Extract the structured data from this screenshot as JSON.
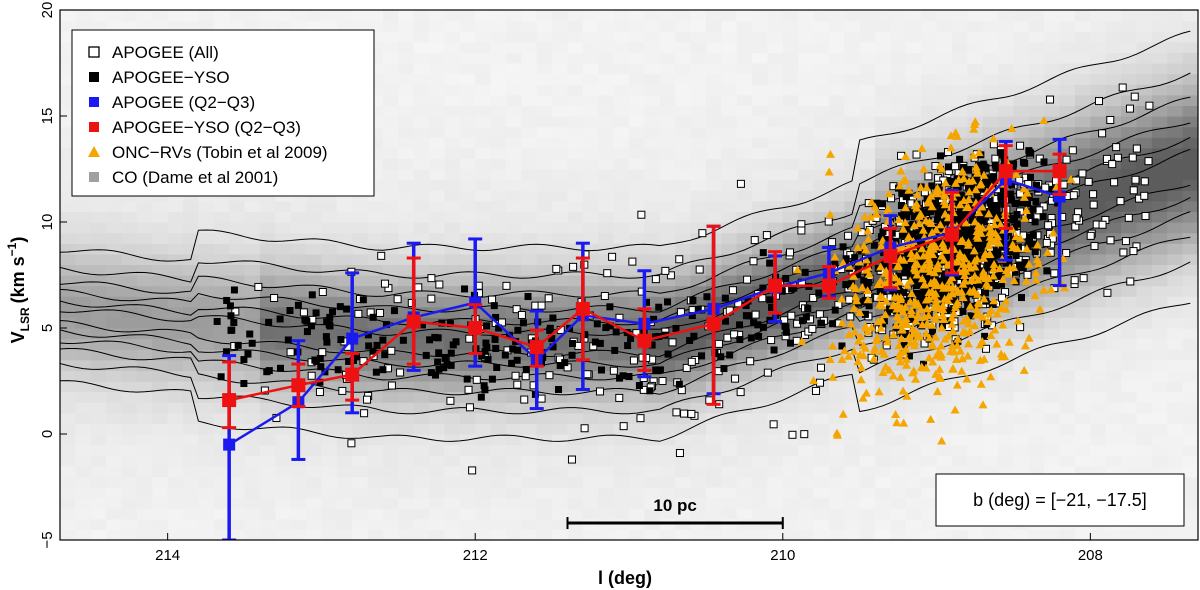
{
  "chart_data": {
    "type": "scatter",
    "xlabel": "l (deg)",
    "ylabel": "V",
    "ylabel_sub": "LSR",
    "ylabel_units": "(km s",
    "ylabel_exp": "−1",
    "ylabel_close": ")",
    "xlim": [
      214.7,
      207.3
    ],
    "ylim": [
      -5,
      20
    ],
    "x_ticks": [
      214,
      212,
      210,
      208
    ],
    "y_ticks": [
      -5,
      0,
      5,
      10,
      15,
      20
    ],
    "x_tick_labels": [
      "214",
      "212",
      "210",
      "208"
    ],
    "y_tick_labels": [
      "−5",
      "0",
      "5",
      "10",
      "15",
      "20"
    ],
    "legend_position": "top-left",
    "legend": [
      {
        "label": "APOGEE (All)",
        "marker": "open-square",
        "color": "#000000"
      },
      {
        "label": "APOGEE−YSO",
        "marker": "filled-square",
        "color": "#000000"
      },
      {
        "label": "APOGEE (Q2−Q3)",
        "marker": "filled-square",
        "color": "#1a1af0"
      },
      {
        "label": "APOGEE−YSO (Q2−Q3)",
        "marker": "filled-square",
        "color": "#ee1111"
      },
      {
        "label": "ONC−RVs (Tobin et al 2009)",
        "marker": "triangle",
        "color": "#f5a500"
      },
      {
        "label": "CO (Dame et al 2001)",
        "marker": "filled-square",
        "color": "#a0a0a0"
      }
    ],
    "annotation_box": "b (deg) = [−21, −17.5]",
    "scalebar": {
      "label": "10 pc",
      "x_start": 211.4,
      "x_end": 210.0,
      "y": -4.2
    },
    "colors": {
      "blue": "#1a1af0",
      "red": "#ee1111",
      "orange": "#f5a500"
    },
    "series_q2q3_all": {
      "x": [
        213.6,
        213.15,
        212.8,
        212.4,
        212.0,
        211.6,
        211.3,
        210.9,
        210.45,
        210.05,
        209.7,
        209.3,
        208.9,
        208.55,
        208.2
      ],
      "y": [
        -0.5,
        1.5,
        4.5,
        5.5,
        6.2,
        3.5,
        5.6,
        5.2,
        5.9,
        6.9,
        7.6,
        8.8,
        9.5,
        12.0,
        11.2
      ],
      "yerr_low": [
        -5.0,
        -1.2,
        1.0,
        3.0,
        3.2,
        1.2,
        2.1,
        2.7,
        1.9,
        5.3,
        6.5,
        6.8,
        7.5,
        8.2,
        7.0
      ],
      "yerr_high": [
        3.7,
        4.4,
        7.6,
        9.0,
        9.2,
        5.8,
        9.0,
        7.7,
        9.8,
        8.4,
        8.8,
        10.3,
        11.5,
        13.8,
        13.9
      ]
    },
    "series_q2q3_yso": {
      "x": [
        213.6,
        213.15,
        212.8,
        212.4,
        212.0,
        211.6,
        211.3,
        210.9,
        210.45,
        210.05,
        209.7,
        209.3,
        208.9,
        208.55,
        208.2
      ],
      "y": [
        1.6,
        2.3,
        2.8,
        5.3,
        5.0,
        4.1,
        5.9,
        4.4,
        5.2,
        7.0,
        7.0,
        8.4,
        9.4,
        12.4,
        12.4
      ],
      "yerr_low": [
        0.3,
        1.3,
        1.6,
        3.3,
        3.8,
        3.2,
        3.5,
        3.0,
        1.4,
        5.7,
        6.4,
        6.9,
        7.6,
        9.7,
        11.3
      ],
      "yerr_high": [
        3.4,
        3.3,
        3.8,
        8.3,
        6.1,
        4.9,
        8.3,
        5.9,
        9.8,
        8.6,
        7.9,
        9.7,
        11.4,
        13.6,
        13.2
      ]
    }
  }
}
